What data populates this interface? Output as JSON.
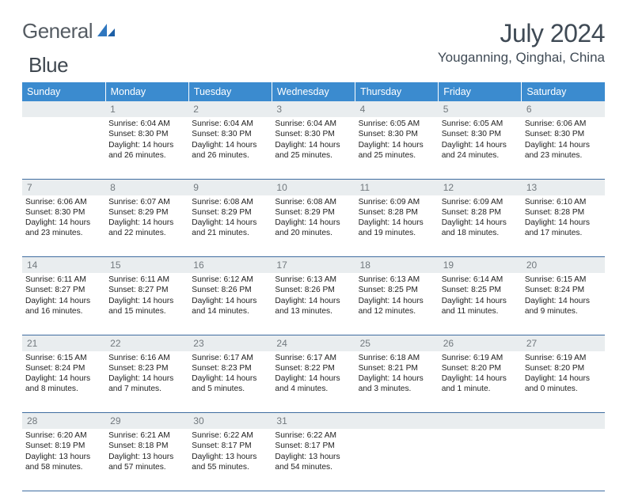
{
  "logo": {
    "text1": "General",
    "text2": "Blue"
  },
  "title": "July 2024",
  "location": "Youganning, Qinghai, China",
  "header_bg": "#3b8bcf",
  "daynum_bg": "#e9edef",
  "days": [
    "Sunday",
    "Monday",
    "Tuesday",
    "Wednesday",
    "Thursday",
    "Friday",
    "Saturday"
  ],
  "weeks": [
    {
      "nums": [
        "",
        "1",
        "2",
        "3",
        "4",
        "5",
        "6"
      ],
      "cells": [
        null,
        {
          "sr": "6:04 AM",
          "ss": "8:30 PM",
          "dl": "14 hours and 26 minutes."
        },
        {
          "sr": "6:04 AM",
          "ss": "8:30 PM",
          "dl": "14 hours and 26 minutes."
        },
        {
          "sr": "6:04 AM",
          "ss": "8:30 PM",
          "dl": "14 hours and 25 minutes."
        },
        {
          "sr": "6:05 AM",
          "ss": "8:30 PM",
          "dl": "14 hours and 25 minutes."
        },
        {
          "sr": "6:05 AM",
          "ss": "8:30 PM",
          "dl": "14 hours and 24 minutes."
        },
        {
          "sr": "6:06 AM",
          "ss": "8:30 PM",
          "dl": "14 hours and 23 minutes."
        }
      ]
    },
    {
      "nums": [
        "7",
        "8",
        "9",
        "10",
        "11",
        "12",
        "13"
      ],
      "cells": [
        {
          "sr": "6:06 AM",
          "ss": "8:30 PM",
          "dl": "14 hours and 23 minutes."
        },
        {
          "sr": "6:07 AM",
          "ss": "8:29 PM",
          "dl": "14 hours and 22 minutes."
        },
        {
          "sr": "6:08 AM",
          "ss": "8:29 PM",
          "dl": "14 hours and 21 minutes."
        },
        {
          "sr": "6:08 AM",
          "ss": "8:29 PM",
          "dl": "14 hours and 20 minutes."
        },
        {
          "sr": "6:09 AM",
          "ss": "8:28 PM",
          "dl": "14 hours and 19 minutes."
        },
        {
          "sr": "6:09 AM",
          "ss": "8:28 PM",
          "dl": "14 hours and 18 minutes."
        },
        {
          "sr": "6:10 AM",
          "ss": "8:28 PM",
          "dl": "14 hours and 17 minutes."
        }
      ]
    },
    {
      "nums": [
        "14",
        "15",
        "16",
        "17",
        "18",
        "19",
        "20"
      ],
      "cells": [
        {
          "sr": "6:11 AM",
          "ss": "8:27 PM",
          "dl": "14 hours and 16 minutes."
        },
        {
          "sr": "6:11 AM",
          "ss": "8:27 PM",
          "dl": "14 hours and 15 minutes."
        },
        {
          "sr": "6:12 AM",
          "ss": "8:26 PM",
          "dl": "14 hours and 14 minutes."
        },
        {
          "sr": "6:13 AM",
          "ss": "8:26 PM",
          "dl": "14 hours and 13 minutes."
        },
        {
          "sr": "6:13 AM",
          "ss": "8:25 PM",
          "dl": "14 hours and 12 minutes."
        },
        {
          "sr": "6:14 AM",
          "ss": "8:25 PM",
          "dl": "14 hours and 11 minutes."
        },
        {
          "sr": "6:15 AM",
          "ss": "8:24 PM",
          "dl": "14 hours and 9 minutes."
        }
      ]
    },
    {
      "nums": [
        "21",
        "22",
        "23",
        "24",
        "25",
        "26",
        "27"
      ],
      "cells": [
        {
          "sr": "6:15 AM",
          "ss": "8:24 PM",
          "dl": "14 hours and 8 minutes."
        },
        {
          "sr": "6:16 AM",
          "ss": "8:23 PM",
          "dl": "14 hours and 7 minutes."
        },
        {
          "sr": "6:17 AM",
          "ss": "8:23 PM",
          "dl": "14 hours and 5 minutes."
        },
        {
          "sr": "6:17 AM",
          "ss": "8:22 PM",
          "dl": "14 hours and 4 minutes."
        },
        {
          "sr": "6:18 AM",
          "ss": "8:21 PM",
          "dl": "14 hours and 3 minutes."
        },
        {
          "sr": "6:19 AM",
          "ss": "8:20 PM",
          "dl": "14 hours and 1 minute."
        },
        {
          "sr": "6:19 AM",
          "ss": "8:20 PM",
          "dl": "14 hours and 0 minutes."
        }
      ]
    },
    {
      "nums": [
        "28",
        "29",
        "30",
        "31",
        "",
        "",
        ""
      ],
      "cells": [
        {
          "sr": "6:20 AM",
          "ss": "8:19 PM",
          "dl": "13 hours and 58 minutes."
        },
        {
          "sr": "6:21 AM",
          "ss": "8:18 PM",
          "dl": "13 hours and 57 minutes."
        },
        {
          "sr": "6:22 AM",
          "ss": "8:17 PM",
          "dl": "13 hours and 55 minutes."
        },
        {
          "sr": "6:22 AM",
          "ss": "8:17 PM",
          "dl": "13 hours and 54 minutes."
        },
        null,
        null,
        null
      ]
    }
  ],
  "labels": {
    "sunrise": "Sunrise:",
    "sunset": "Sunset:",
    "daylight": "Daylight:"
  }
}
